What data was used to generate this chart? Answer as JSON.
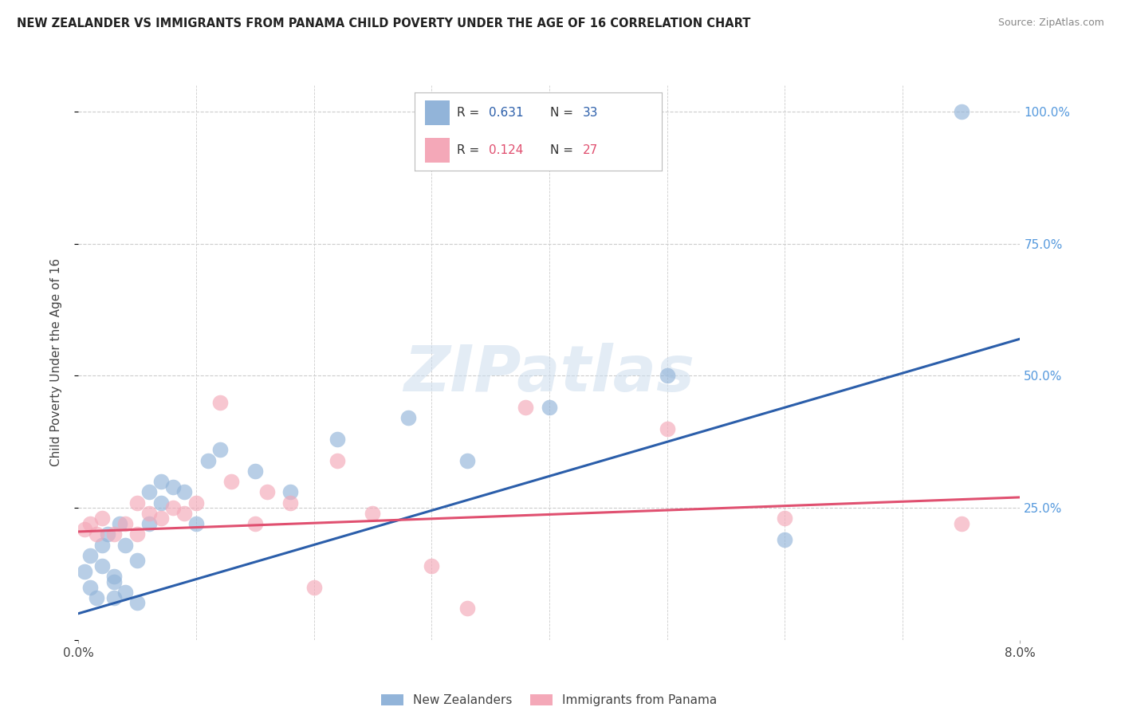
{
  "title": "NEW ZEALANDER VS IMMIGRANTS FROM PANAMA CHILD POVERTY UNDER THE AGE OF 16 CORRELATION CHART",
  "source": "Source: ZipAtlas.com",
  "ylabel": "Child Poverty Under the Age of 16",
  "x_min": 0.0,
  "x_max": 0.08,
  "y_min": 0.0,
  "y_max": 1.05,
  "nz_R": "0.631",
  "nz_N": "33",
  "pan_R": "0.124",
  "pan_N": "27",
  "nz_color": "#92B4D9",
  "pan_color": "#F4A8B8",
  "nz_line_color": "#2B5EAA",
  "pan_line_color": "#E05070",
  "nz_scatter_x": [
    0.0005,
    0.001,
    0.001,
    0.0015,
    0.002,
    0.002,
    0.0025,
    0.003,
    0.003,
    0.003,
    0.0035,
    0.004,
    0.004,
    0.005,
    0.005,
    0.006,
    0.006,
    0.007,
    0.007,
    0.008,
    0.009,
    0.01,
    0.011,
    0.012,
    0.015,
    0.018,
    0.022,
    0.028,
    0.033,
    0.04,
    0.05,
    0.06,
    0.075
  ],
  "nz_scatter_y": [
    0.13,
    0.16,
    0.1,
    0.08,
    0.18,
    0.14,
    0.2,
    0.08,
    0.11,
    0.12,
    0.22,
    0.09,
    0.18,
    0.15,
    0.07,
    0.22,
    0.28,
    0.3,
    0.26,
    0.29,
    0.28,
    0.22,
    0.34,
    0.36,
    0.32,
    0.28,
    0.38,
    0.42,
    0.34,
    0.44,
    0.5,
    0.19,
    1.0
  ],
  "pan_scatter_x": [
    0.0005,
    0.001,
    0.0015,
    0.002,
    0.003,
    0.004,
    0.005,
    0.005,
    0.006,
    0.007,
    0.008,
    0.009,
    0.01,
    0.012,
    0.013,
    0.015,
    0.016,
    0.018,
    0.02,
    0.022,
    0.025,
    0.03,
    0.033,
    0.038,
    0.05,
    0.06,
    0.075
  ],
  "pan_scatter_y": [
    0.21,
    0.22,
    0.2,
    0.23,
    0.2,
    0.22,
    0.2,
    0.26,
    0.24,
    0.23,
    0.25,
    0.24,
    0.26,
    0.45,
    0.3,
    0.22,
    0.28,
    0.26,
    0.1,
    0.34,
    0.24,
    0.14,
    0.06,
    0.44,
    0.4,
    0.23,
    0.22
  ],
  "nz_line_x0": 0.0,
  "nz_line_y0": 0.05,
  "nz_line_x1": 0.08,
  "nz_line_y1": 0.57,
  "pan_line_x0": 0.0,
  "pan_line_y0": 0.205,
  "pan_line_x1": 0.08,
  "pan_line_y1": 0.27,
  "watermark_text": "ZIPatlas",
  "legend_label_nz": "New Zealanders",
  "legend_label_pan": "Immigrants from Panama",
  "background_color": "#FFFFFF",
  "grid_color": "#CCCCCC",
  "ytick_color": "#5599DD",
  "label_color": "#444444"
}
